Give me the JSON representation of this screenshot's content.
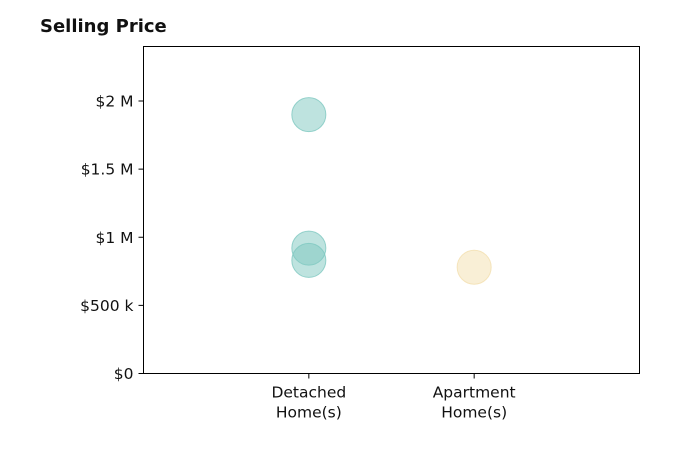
{
  "chart_data": {
    "type": "scatter",
    "title": "Selling Price",
    "xlabel": "",
    "ylabel": "",
    "categories": [
      [
        "Detached",
        "Home(s)"
      ],
      [
        "Apartment",
        "Home(s)"
      ]
    ],
    "y_ticks": [
      {
        "value": 0,
        "label": "$0"
      },
      {
        "value": 500000,
        "label": "$500 k"
      },
      {
        "value": 1000000,
        "label": "$1 M"
      },
      {
        "value": 1500000,
        "label": "$1.5 M"
      },
      {
        "value": 2000000,
        "label": "$2 M"
      }
    ],
    "ylim": [
      0,
      2400000
    ],
    "grid": false,
    "legend": "none",
    "series": [
      {
        "color": "#7ec8c0",
        "points": [
          {
            "category": 0,
            "y": 1900000
          },
          {
            "category": 0,
            "y": 920000
          },
          {
            "category": 0,
            "y": 830000
          }
        ]
      },
      {
        "color": "#f3dfae",
        "points": [
          {
            "category": 1,
            "y": 780000
          }
        ]
      }
    ]
  }
}
